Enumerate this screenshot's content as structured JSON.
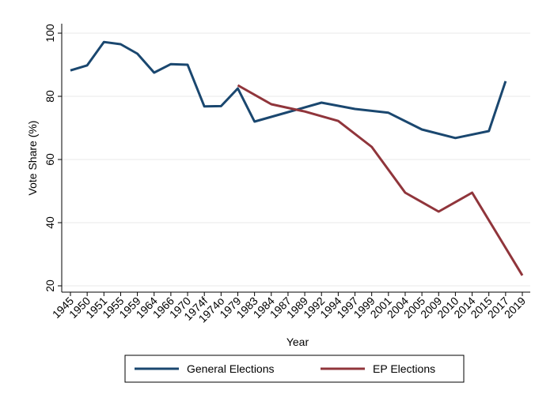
{
  "chart_data": {
    "type": "line",
    "x_label": "Year",
    "y_label": "Vote Share (%)",
    "categories": [
      "1945",
      "1950",
      "1951",
      "1955",
      "1959",
      "1964",
      "1966",
      "1970",
      "1974f",
      "1974o",
      "1979",
      "1983",
      "1984",
      "1987",
      "1989",
      "1992",
      "1994",
      "1997",
      "1999",
      "2001",
      "2004",
      "2005",
      "2009",
      "2010",
      "2014",
      "2015",
      "2017",
      "2019"
    ],
    "series": [
      {
        "name": "General Elections",
        "color": "#1a476f",
        "x": [
          "1945",
          "1950",
          "1951",
          "1955",
          "1959",
          "1964",
          "1966",
          "1970",
          "1974f",
          "1974o",
          "1979",
          "1983",
          "1987",
          "1992",
          "1997",
          "2001",
          "2005",
          "2010",
          "2015",
          "2017"
        ],
        "values": [
          88.2,
          89.8,
          97.2,
          96.5,
          93.5,
          87.5,
          90.2,
          90.0,
          76.8,
          76.9,
          82.5,
          72.0,
          75.0,
          78.0,
          76.0,
          74.8,
          69.5,
          66.8,
          69.0,
          84.8
        ]
      },
      {
        "name": "EP Elections",
        "color": "#90353b",
        "x": [
          "1979",
          "1984",
          "1989",
          "1994",
          "1999",
          "2004",
          "2009",
          "2014",
          "2019"
        ],
        "values": [
          83.5,
          77.5,
          75.2,
          72.2,
          64.0,
          49.5,
          43.5,
          49.5,
          23.3
        ]
      }
    ],
    "ylim": [
      18,
      103
    ],
    "yticks": [
      20,
      40,
      60,
      80,
      100
    ],
    "grid": true,
    "legend": "bottom"
  }
}
